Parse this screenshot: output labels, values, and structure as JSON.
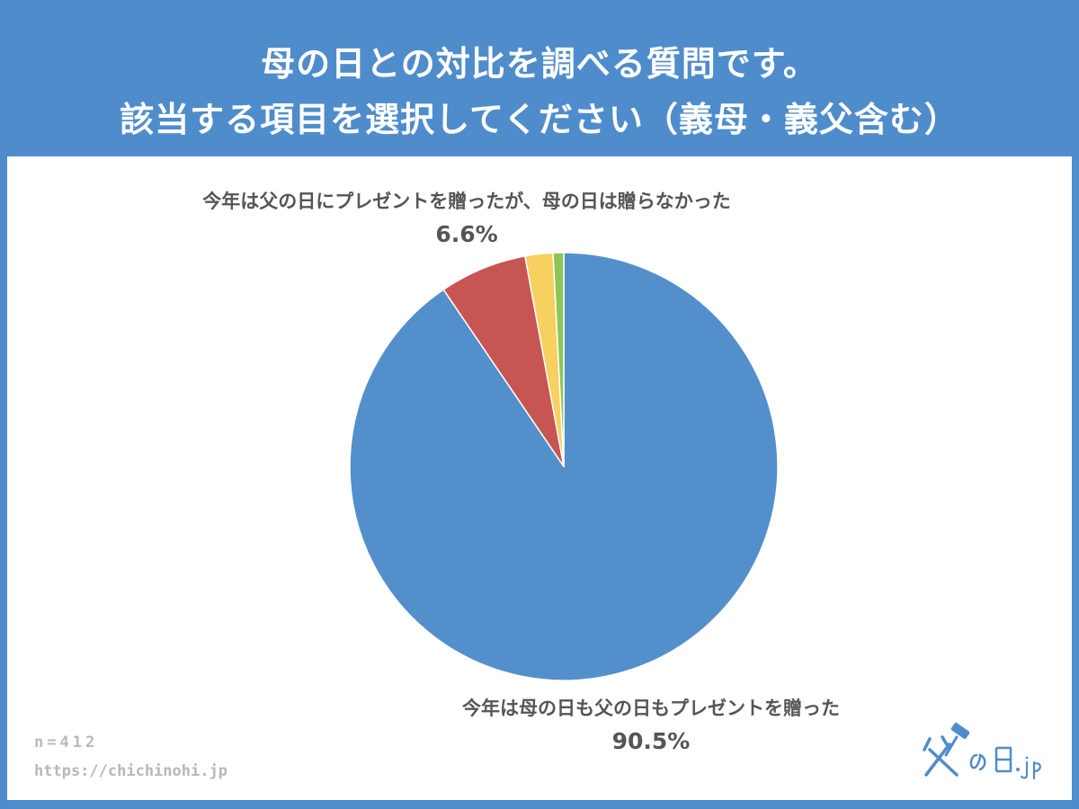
{
  "header": {
    "title_line1": "母の日との対比を調べる質問です。",
    "title_line2": "該当する項目を選択してください（義母・義父含む）"
  },
  "footer": {
    "sample_size": "n=412",
    "url": "https://chichinohi.jp"
  },
  "logo": {
    "text": "父の日.jp"
  },
  "colors": {
    "background": "#4f8ccc",
    "slice_1": "#538fcb",
    "slice_2": "#c75553",
    "slice_3": "#f8d060",
    "slice_4": "#8dc655",
    "label_text": "#555555"
  },
  "chart_data": {
    "type": "pie",
    "title": "",
    "labels": [
      "今年は母の日も父の日もプレゼントを贈った",
      "今年は父の日にプレゼントを贈ったが、母の日は贈らなかった",
      "",
      ""
    ],
    "values": [
      90.5,
      6.6,
      2.1,
      0.8
    ],
    "display_values": [
      "90.5%",
      "6.6%",
      "",
      ""
    ],
    "start": "12 o'clock",
    "direction": "clockwise",
    "legend": "none"
  }
}
